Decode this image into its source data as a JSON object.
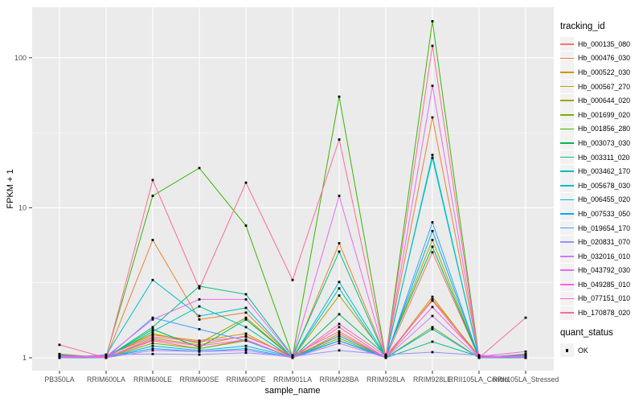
{
  "chart_data": {
    "type": "line",
    "title": "",
    "xlabel": "sample_name",
    "ylabel": "FPKM + 1",
    "y_scale": "log10",
    "y_ticks": [
      1,
      10,
      100
    ],
    "y_minor_ticks": [
      3.162,
      31.62
    ],
    "ylim": [
      0.82,
      217
    ],
    "grid": true,
    "legend_position": "right",
    "legend_title": "tracking_id",
    "quant_status": {
      "title": "quant_status",
      "value": "OK"
    },
    "colors": {
      "panel_bg": "#EBEBEB",
      "grid": "#FFFFFF",
      "point": "#000000",
      "axis_text": "#4D4D4D",
      "tick_mark": "#333333"
    },
    "categories": [
      "PB350LA",
      "RRIM600LA",
      "RRIM600LE",
      "RRIM600SE",
      "RRIM600PE",
      "RRIM901LA",
      "RRIM928BA",
      "RRIM928LA",
      "RRIM928LE",
      "RRII105LA_Control",
      "RRII105LA_Stressed"
    ],
    "series": [
      {
        "name": "Hb_000135_080",
        "color": "#F8766D",
        "values": [
          1.05,
          1,
          1.3,
          1.15,
          1.32,
          1,
          1.6,
          1,
          5.05,
          1,
          1.02
        ]
      },
      {
        "name": "Hb_000476_030",
        "color": "#EA8331",
        "values": [
          1.02,
          1,
          6.1,
          1.8,
          2.0,
          1,
          5.8,
          1.02,
          40,
          1.02,
          1
        ]
      },
      {
        "name": "Hb_000522_030",
        "color": "#D89000",
        "values": [
          1,
          1.02,
          1.42,
          1.3,
          1.45,
          1,
          1.45,
          1,
          2.55,
          1,
          1.03
        ]
      },
      {
        "name": "Hb_000567_270",
        "color": "#C09B00",
        "values": [
          1.03,
          1,
          1.35,
          1.22,
          1.4,
          1.02,
          1.4,
          1,
          2.45,
          1.03,
          1
        ]
      },
      {
        "name": "Hb_000644_020",
        "color": "#A3A500",
        "values": [
          1,
          1.03,
          1.45,
          1.25,
          1.85,
          1,
          2.6,
          1.03,
          6.1,
          1,
          1
        ]
      },
      {
        "name": "Hb_001699_020",
        "color": "#7CAE00",
        "values": [
          1.06,
          1,
          1.25,
          1.15,
          1.3,
          1,
          1.35,
          1,
          1.6,
          1,
          1.05
        ]
      },
      {
        "name": "Hb_001856_280",
        "color": "#39B600",
        "values": [
          1,
          1.02,
          12,
          18.4,
          7.6,
          1.02,
          55,
          1,
          175,
          1,
          1.06
        ]
      },
      {
        "name": "Hb_003073_030",
        "color": "#00BB4E",
        "values": [
          1.04,
          1,
          1.55,
          1.17,
          1.8,
          1,
          1.95,
          1.04,
          5.5,
          1,
          1.04
        ]
      },
      {
        "name": "Hb_003311_020",
        "color": "#00C087",
        "values": [
          1,
          1,
          1.6,
          3.0,
          2.65,
          1.03,
          5.1,
          1,
          1.28,
          1.02,
          1
        ]
      },
      {
        "name": "Hb_003462_170",
        "color": "#00C0B2",
        "values": [
          1.02,
          1,
          1.5,
          2.2,
          1.6,
          1,
          2.9,
          1,
          22.5,
          1,
          1.02
        ]
      },
      {
        "name": "Hb_005678_030",
        "color": "#00BDD0",
        "values": [
          1,
          1.04,
          3.3,
          1.9,
          2.15,
          1,
          3.2,
          1.02,
          21.5,
          1,
          1
        ]
      },
      {
        "name": "Hb_006455_020",
        "color": "#00B8E5",
        "values": [
          1.01,
          1,
          1.2,
          1.12,
          1.2,
          1.01,
          1.3,
          1,
          1.55,
          1,
          1.01
        ]
      },
      {
        "name": "Hb_007533_050",
        "color": "#00ACF4",
        "values": [
          1,
          1.01,
          1.15,
          1.1,
          1.15,
          1,
          1.3,
          1.01,
          7.0,
          1.01,
          1
        ]
      },
      {
        "name": "Hb_019654_170",
        "color": "#35A2FF",
        "values": [
          1.03,
          1,
          1.85,
          1.55,
          1.3,
          1,
          1.4,
          1,
          8.0,
          1,
          1.03
        ]
      },
      {
        "name": "Hb_020831_070",
        "color": "#9590FF",
        "values": [
          1,
          1.05,
          1.06,
          1.05,
          1.08,
          1.02,
          1.12,
          1.05,
          1.09,
          1.04,
          1
        ]
      },
      {
        "name": "Hb_032016_010",
        "color": "#C77CFF",
        "values": [
          1.02,
          1,
          1.12,
          1.1,
          1.12,
          1,
          1.25,
          1,
          1.9,
          1,
          1.02
        ]
      },
      {
        "name": "Hb_043792_030",
        "color": "#E76BF3",
        "values": [
          1,
          1.02,
          1.8,
          2.45,
          2.45,
          1.02,
          12,
          1,
          65,
          1.02,
          1.1
        ]
      },
      {
        "name": "Hb_049285_010",
        "color": "#FA62DB",
        "values": [
          1.05,
          1,
          1.32,
          1.2,
          1.32,
          1,
          1.68,
          1.03,
          2.4,
          1,
          1.05
        ]
      },
      {
        "name": "Hb_077151_010",
        "color": "#FF61C9",
        "values": [
          1,
          1.03,
          1.38,
          1.28,
          1.38,
          1.04,
          1.5,
          1,
          2.18,
          1.03,
          1
        ]
      },
      {
        "name": "Hb_170878_020",
        "color": "#FF6A98",
        "values": [
          1.22,
          1,
          15.3,
          2.9,
          14.7,
          3.3,
          28.5,
          1,
          120,
          1,
          1.85
        ]
      }
    ]
  }
}
